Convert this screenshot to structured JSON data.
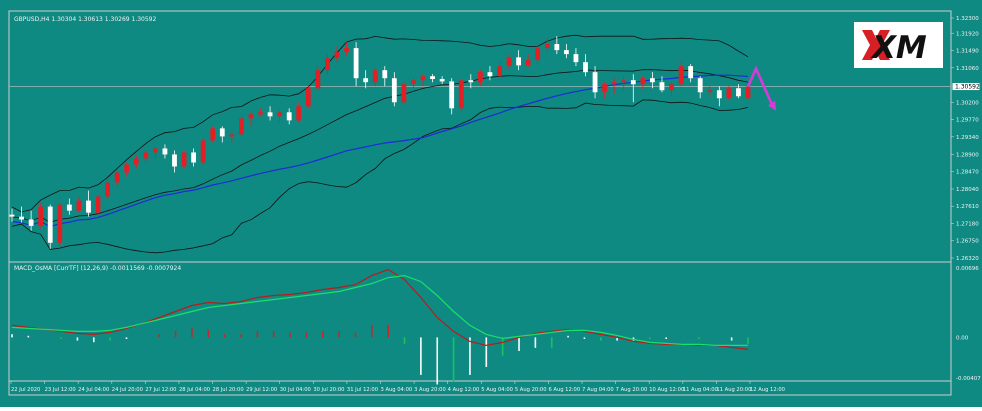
{
  "colors": {
    "background": "#0f8a83",
    "bull": "#e31e24",
    "bear": "#ffffff",
    "band": "#111111",
    "ma": "#1c2bd8",
    "macd_main": "#b71c1c",
    "macd_signal": "#19e06a",
    "hist_up": "#c62828",
    "hist_down": "#ffffff",
    "hist_green": "#16c45a",
    "arrow": "#d63bd8",
    "text": "#f2f2f2",
    "price_line": "#c0c0c0"
  },
  "main_chart": {
    "symbol_label": "GBPUSD,H4  1.30304 1.30613 1.30269 1.30592",
    "price_axis_labels": [
      "1.32300",
      "1.31920",
      "1.31490",
      "1.31060",
      "1.30592",
      "1.30200",
      "1.29770",
      "1.29340",
      "1.28900",
      "1.28470",
      "1.28040",
      "1.27610",
      "1.27180",
      "1.26750",
      "1.26320"
    ],
    "current_price": "1.30592"
  },
  "indicator": {
    "label": "MACD_OsMA [CurrTF] (12,26,9) -0.0011569 -0.0007924",
    "axis_labels": [
      "0.00696",
      "0.00",
      "-0.00407"
    ]
  },
  "time_labels": [
    "22 Jul 2020",
    "23 Jul 12:00",
    "24 Jul 04:00",
    "24 Jul 20:00",
    "27 Jul 12:00",
    "28 Jul 04:00",
    "28 Jul 20:00",
    "29 Jul 12:00",
    "30 Jul 04:00",
    "30 Jul 20:00",
    "31 Jul 12:00",
    "3 Aug 04:00",
    "3 Aug 20:00",
    "4 Aug 12:00",
    "5 Aug 04:00",
    "5 Aug 20:00",
    "6 Aug 12:00",
    "7 Aug 04:00",
    "7 Aug 20:00",
    "10 Aug 12:00",
    "11 Aug 04:00",
    "11 Aug 20:00",
    "12 Aug 12:00"
  ],
  "logo": {
    "text": "XM"
  },
  "chart_data": {
    "type": "candlestick",
    "symbol": "GBPUSD",
    "timeframe": "H4",
    "ylim": [
      1.2632,
      1.323
    ],
    "candles": [
      [
        1.274,
        1.2755,
        1.2722,
        1.2735
      ],
      [
        1.2735,
        1.276,
        1.272,
        1.2728
      ],
      [
        1.2728,
        1.275,
        1.27,
        1.2712
      ],
      [
        1.2712,
        1.277,
        1.2705,
        1.276
      ],
      [
        1.276,
        1.2765,
        1.2655,
        1.267
      ],
      [
        1.267,
        1.277,
        1.266,
        1.2765
      ],
      [
        1.2765,
        1.278,
        1.274,
        1.275
      ],
      [
        1.275,
        1.2785,
        1.2745,
        1.2775
      ],
      [
        1.2775,
        1.28,
        1.2735,
        1.2745
      ],
      [
        1.2745,
        1.279,
        1.274,
        1.2785
      ],
      [
        1.2785,
        1.283,
        1.278,
        1.282
      ],
      [
        1.282,
        1.285,
        1.281,
        1.2845
      ],
      [
        1.2845,
        1.287,
        1.2835,
        1.2865
      ],
      [
        1.2865,
        1.289,
        1.2855,
        1.288
      ],
      [
        1.288,
        1.29,
        1.287,
        1.2895
      ],
      [
        1.2895,
        1.291,
        1.288,
        1.2905
      ],
      [
        1.2905,
        1.2915,
        1.288,
        1.289
      ],
      [
        1.289,
        1.29,
        1.2845,
        1.286
      ],
      [
        1.286,
        1.29,
        1.2855,
        1.2895
      ],
      [
        1.2895,
        1.2905,
        1.286,
        1.287
      ],
      [
        1.287,
        1.293,
        1.2865,
        1.2925
      ],
      [
        1.2925,
        1.296,
        1.292,
        1.2955
      ],
      [
        1.2955,
        1.296,
        1.292,
        1.2935
      ],
      [
        1.2935,
        1.2945,
        1.292,
        1.294
      ],
      [
        1.294,
        1.2985,
        1.2935,
        1.298
      ],
      [
        1.298,
        1.2995,
        1.296,
        1.299
      ],
      [
        1.299,
        1.3005,
        1.2985,
        1.2995
      ],
      [
        1.2995,
        1.301,
        1.2975,
        1.2985
      ],
      [
        1.2985,
        1.3,
        1.297,
        1.2995
      ],
      [
        1.2995,
        1.3005,
        1.2965,
        1.2975
      ],
      [
        1.2975,
        1.302,
        1.297,
        1.301
      ],
      [
        1.301,
        1.306,
        1.3005,
        1.3055
      ],
      [
        1.3055,
        1.311,
        1.305,
        1.31
      ],
      [
        1.31,
        1.314,
        1.309,
        1.313
      ],
      [
        1.313,
        1.316,
        1.312,
        1.3145
      ],
      [
        1.3145,
        1.317,
        1.3135,
        1.3155
      ],
      [
        1.3155,
        1.317,
        1.306,
        1.308
      ],
      [
        1.308,
        1.31,
        1.3055,
        1.307
      ],
      [
        1.307,
        1.3105,
        1.306,
        1.31
      ],
      [
        1.31,
        1.311,
        1.306,
        1.308
      ],
      [
        1.308,
        1.3095,
        1.301,
        1.302
      ],
      [
        1.302,
        1.307,
        1.3015,
        1.3065
      ],
      [
        1.3065,
        1.308,
        1.3055,
        1.3075
      ],
      [
        1.3075,
        1.309,
        1.306,
        1.3085
      ],
      [
        1.3085,
        1.309,
        1.307,
        1.3078
      ],
      [
        1.3078,
        1.3085,
        1.3065,
        1.3072
      ],
      [
        1.3072,
        1.308,
        1.299,
        1.3005
      ],
      [
        1.3005,
        1.308,
        1.2995,
        1.3075
      ],
      [
        1.3075,
        1.309,
        1.3055,
        1.307
      ],
      [
        1.307,
        1.31,
        1.306,
        1.3095
      ],
      [
        1.3095,
        1.311,
        1.3075,
        1.3085
      ],
      [
        1.3085,
        1.312,
        1.308,
        1.311
      ],
      [
        1.311,
        1.314,
        1.31,
        1.3132
      ],
      [
        1.3132,
        1.315,
        1.31,
        1.3112
      ],
      [
        1.3112,
        1.314,
        1.3105,
        1.3125
      ],
      [
        1.3125,
        1.316,
        1.3115,
        1.3155
      ],
      [
        1.3155,
        1.318,
        1.3145,
        1.3165
      ],
      [
        1.3165,
        1.3185,
        1.314,
        1.315
      ],
      [
        1.315,
        1.3165,
        1.313,
        1.314
      ],
      [
        1.314,
        1.3155,
        1.311,
        1.312
      ],
      [
        1.312,
        1.314,
        1.3085,
        1.3095
      ],
      [
        1.3095,
        1.311,
        1.303,
        1.3045
      ],
      [
        1.3045,
        1.307,
        1.303,
        1.3065
      ],
      [
        1.3065,
        1.308,
        1.304,
        1.307
      ],
      [
        1.307,
        1.3085,
        1.305,
        1.3075
      ],
      [
        1.3075,
        1.309,
        1.302,
        1.3065
      ],
      [
        1.3065,
        1.3085,
        1.305,
        1.308
      ],
      [
        1.308,
        1.3095,
        1.3055,
        1.307
      ],
      [
        1.307,
        1.3085,
        1.3045,
        1.305
      ],
      [
        1.305,
        1.307,
        1.3035,
        1.3065
      ],
      [
        1.3065,
        1.312,
        1.306,
        1.311
      ],
      [
        1.311,
        1.3115,
        1.307,
        1.308
      ],
      [
        1.308,
        1.3085,
        1.303,
        1.3045
      ],
      [
        1.3045,
        1.306,
        1.303,
        1.305
      ],
      [
        1.305,
        1.306,
        1.301,
        1.303
      ],
      [
        1.303,
        1.306,
        1.3025,
        1.3055
      ],
      [
        1.3055,
        1.3065,
        1.303,
        1.3035
      ],
      [
        1.303,
        1.306,
        1.3027,
        1.3059
      ]
    ],
    "forecast_arrow": {
      "direction": "up then down"
    },
    "macd_main": [
      0.0012,
      0.001,
      0.0008,
      0.0006,
      0.0004,
      0.0003,
      0.0005,
      0.0009,
      0.0014,
      0.002,
      0.0026,
      0.0032,
      0.0035,
      0.0034,
      0.0036,
      0.004,
      0.0042,
      0.0043,
      0.0045,
      0.0048,
      0.005,
      0.0053,
      0.0062,
      0.0068,
      0.0058,
      0.004,
      0.002,
      0.0006,
      -0.0004,
      -0.0008,
      -0.0005,
      0.0,
      0.0004,
      0.0006,
      0.0008,
      0.0006,
      0.0003,
      0.0,
      -0.0004,
      -0.0006,
      -0.0007,
      -0.0007,
      -0.0008,
      -0.0008,
      -0.001,
      -0.0012
    ],
    "macd_signal": [
      0.001,
      0.0009,
      0.0008,
      0.0007,
      0.0006,
      0.0006,
      0.0007,
      0.001,
      0.0014,
      0.0018,
      0.0022,
      0.0026,
      0.003,
      0.0032,
      0.0034,
      0.0036,
      0.0038,
      0.004,
      0.0042,
      0.0044,
      0.0046,
      0.005,
      0.0054,
      0.006,
      0.0062,
      0.0056,
      0.0042,
      0.0026,
      0.0012,
      0.0003,
      -0.0001,
      0.0001,
      0.0003,
      0.0005,
      0.0007,
      0.0007,
      0.0005,
      0.0002,
      -0.0002,
      -0.0005,
      -0.0006,
      -0.0007,
      -0.0007,
      -0.0008,
      -0.0008,
      -0.0008
    ]
  }
}
